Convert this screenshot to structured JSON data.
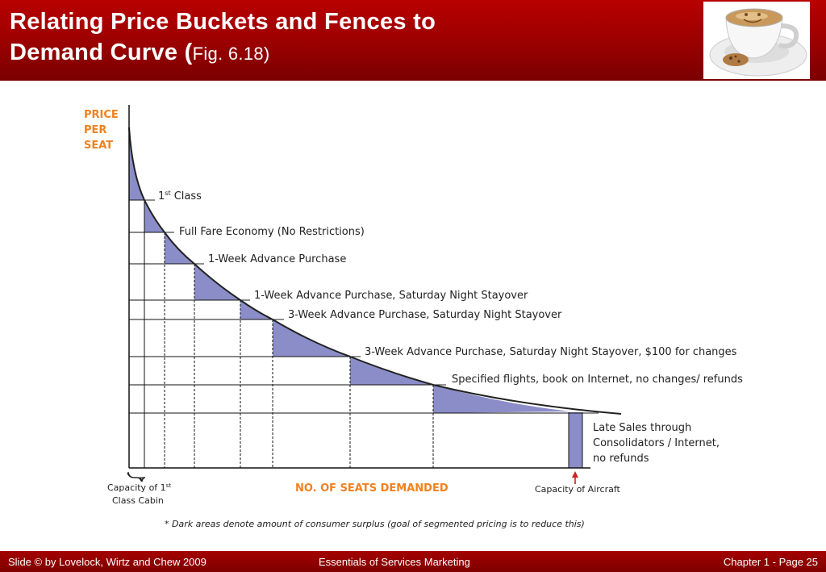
{
  "slide": {
    "title_line1": "Relating Price Buckets and Fences to",
    "title_line2": "Demand Curve (",
    "title_fig": "Fig. 6.18",
    "title_close": ")"
  },
  "diagram": {
    "y_axis_label": [
      "PRICE",
      "PER",
      "SEAT"
    ],
    "x_axis_label": "NO. OF SEATS DEMANDED",
    "buckets": [
      "1",
      "Full Fare Economy (No Restrictions)",
      "1-Week Advance Purchase",
      "1-Week Advance Purchase, Saturday Night Stayover",
      "3-Week Advance Purchase, Saturday Night Stayover",
      "3-Week Advance Purchase, Saturday Night Stayover, $100 for changes",
      "Specified flights, book on Internet, no changes/ refunds"
    ],
    "first_class_sup": "st",
    "first_class_rest": " Class",
    "late_sales": [
      "Late Sales through",
      "Consolidators / Internet,",
      "no refunds"
    ],
    "capacity_first_class": [
      "Capacity of 1",
      "Class Cabin"
    ],
    "capacity_first_class_sup": "st",
    "capacity_aircraft": "Capacity of Aircraft",
    "footnote": "* Dark areas denote amount of consumer surplus (goal of segmented pricing is to reduce this)",
    "colors": {
      "shade": "#8b8dc8",
      "accent": "#f0811e",
      "arrow": "#d21e1e"
    }
  },
  "footer": {
    "left": "Slide © by Lovelock, Wirtz and Chew 2009",
    "center": "Essentials of Services Marketing",
    "right": "Chapter 1 - Page 25"
  }
}
